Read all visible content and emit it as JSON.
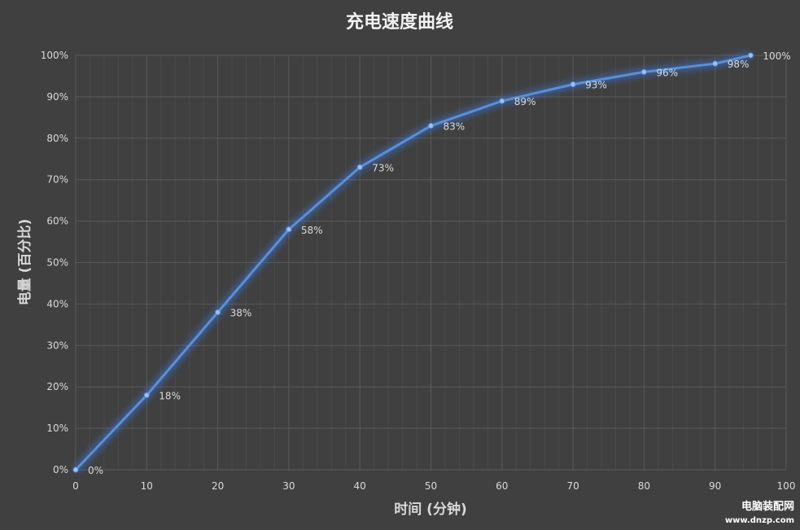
{
  "chart_data": {
    "type": "line",
    "title": "充电速度曲线",
    "xlabel": "时间 (分钟)",
    "ylabel": "电量 (百分比)",
    "xlim": [
      0,
      100
    ],
    "ylim": [
      0,
      100
    ],
    "x_ticks": [
      "0",
      "10",
      "20",
      "30",
      "40",
      "50",
      "60",
      "70",
      "80",
      "90",
      "100"
    ],
    "y_ticks": [
      "0%",
      "10%",
      "20%",
      "30%",
      "40%",
      "50%",
      "60%",
      "70%",
      "80%",
      "90%",
      "100%"
    ],
    "grid": true,
    "series": [
      {
        "x": [
          0,
          10,
          20,
          30,
          40,
          50,
          60,
          70,
          80,
          90,
          95
        ],
        "values": [
          0,
          18,
          38,
          58,
          73,
          83,
          89,
          93,
          96,
          98,
          100
        ],
        "labels": [
          "0%",
          "18%",
          "38%",
          "58%",
          "73%",
          "83%",
          "89%",
          "93%",
          "96%",
          "98%",
          "100%"
        ],
        "color": "#5b8fd6"
      }
    ],
    "colors": {
      "background": "#404040",
      "grid": "#5a5a5a",
      "line": "#5b8fd6",
      "glow": "#3a78e0"
    }
  },
  "watermark": {
    "line1": "电脑装配网",
    "line2": "www.dnzp.com"
  }
}
